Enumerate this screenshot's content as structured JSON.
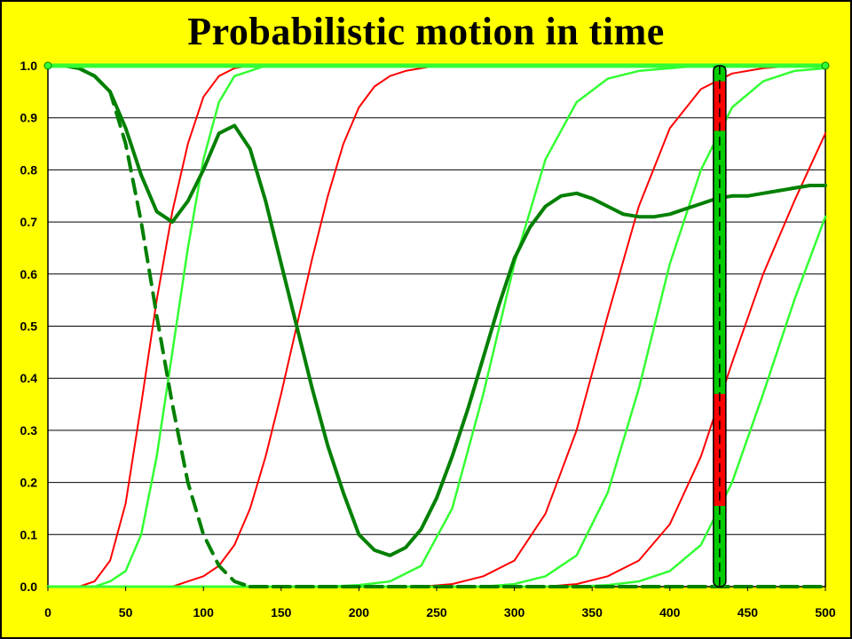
{
  "chart_data": {
    "type": "line",
    "title": "Probabilistic motion in time",
    "xlabel": "",
    "ylabel": "",
    "xlim": [
      0,
      500
    ],
    "ylim": [
      0,
      1
    ],
    "x_ticks": [
      "0",
      "50",
      "100",
      "150",
      "200",
      "250",
      "300",
      "350",
      "400",
      "450",
      "500"
    ],
    "y_ticks": [
      "0.0",
      "0.1",
      "0.2",
      "0.3",
      "0.4",
      "0.5",
      "0.6",
      "0.7",
      "0.8",
      "0.9",
      "1.0"
    ],
    "grid": "horizontal",
    "background_color": "#ffff00",
    "plot_background_color": "#ffffff",
    "series": [
      {
        "style": "red",
        "x": [
          0,
          20,
          30,
          40,
          50,
          60,
          70,
          80,
          90,
          100,
          110,
          120,
          130,
          140,
          500
        ],
        "y": [
          0,
          0,
          0.01,
          0.05,
          0.16,
          0.35,
          0.55,
          0.72,
          0.85,
          0.94,
          0.98,
          0.995,
          1,
          1,
          1
        ]
      },
      {
        "style": "lightgreen",
        "x": [
          0,
          30,
          40,
          50,
          60,
          70,
          80,
          90,
          100,
          110,
          120,
          130,
          140,
          150,
          500
        ],
        "y": [
          0,
          0,
          0.01,
          0.03,
          0.1,
          0.25,
          0.45,
          0.65,
          0.82,
          0.93,
          0.98,
          0.99,
          1,
          1,
          1
        ]
      },
      {
        "style": "red",
        "x": [
          0,
          70,
          80,
          90,
          100,
          110,
          120,
          130,
          140,
          150,
          160,
          170,
          180,
          190,
          200,
          210,
          220,
          230,
          240,
          250,
          260,
          500
        ],
        "y": [
          0,
          0,
          0,
          0.01,
          0.02,
          0.04,
          0.08,
          0.15,
          0.25,
          0.37,
          0.5,
          0.63,
          0.75,
          0.85,
          0.92,
          0.96,
          0.98,
          0.99,
          0.995,
          1,
          1,
          1
        ]
      },
      {
        "style": "lightgreen",
        "x": [
          0,
          180,
          200,
          220,
          240,
          260,
          280,
          300,
          320,
          340,
          360,
          380,
          400,
          420,
          440,
          500
        ],
        "y": [
          0,
          0,
          0.003,
          0.01,
          0.04,
          0.15,
          0.37,
          0.62,
          0.82,
          0.93,
          0.975,
          0.99,
          0.995,
          1,
          1,
          1
        ]
      },
      {
        "style": "red",
        "x": [
          0,
          240,
          260,
          280,
          300,
          320,
          340,
          360,
          380,
          400,
          420,
          440,
          460,
          480,
          500
        ],
        "y": [
          0,
          0,
          0.005,
          0.02,
          0.05,
          0.14,
          0.3,
          0.52,
          0.73,
          0.88,
          0.955,
          0.985,
          0.995,
          1,
          1
        ]
      },
      {
        "style": "lightgreen",
        "x": [
          0,
          280,
          300,
          320,
          340,
          360,
          380,
          400,
          420,
          440,
          460,
          480,
          500
        ],
        "y": [
          0,
          0,
          0.005,
          0.02,
          0.06,
          0.18,
          0.38,
          0.62,
          0.8,
          0.92,
          0.97,
          0.99,
          0.995
        ]
      },
      {
        "style": "red",
        "x": [
          0,
          320,
          340,
          360,
          380,
          400,
          420,
          440,
          460,
          480,
          500
        ],
        "y": [
          0,
          0,
          0.005,
          0.02,
          0.05,
          0.12,
          0.25,
          0.43,
          0.6,
          0.74,
          0.87
        ]
      },
      {
        "style": "lightgreen",
        "x": [
          0,
          340,
          360,
          380,
          400,
          420,
          440,
          460,
          480,
          500
        ],
        "y": [
          0,
          0,
          0.003,
          0.01,
          0.03,
          0.08,
          0.2,
          0.37,
          0.55,
          0.71
        ]
      },
      {
        "style": "darkgreen",
        "x": [
          0,
          10,
          20,
          30,
          40,
          50,
          60,
          70,
          80,
          90,
          100,
          110,
          120,
          130,
          140,
          150,
          160,
          170,
          180,
          190,
          200,
          210,
          220,
          230,
          240,
          250,
          260,
          270,
          280,
          290,
          300,
          310,
          320,
          330,
          340,
          350,
          360,
          370,
          380,
          390,
          400,
          410,
          420,
          430,
          440,
          450,
          460,
          470,
          480,
          490,
          500
        ],
        "y": [
          1,
          1,
          0.995,
          0.98,
          0.95,
          0.88,
          0.79,
          0.72,
          0.7,
          0.74,
          0.8,
          0.87,
          0.885,
          0.84,
          0.74,
          0.62,
          0.5,
          0.38,
          0.27,
          0.18,
          0.1,
          0.07,
          0.06,
          0.075,
          0.11,
          0.17,
          0.25,
          0.34,
          0.44,
          0.54,
          0.63,
          0.69,
          0.73,
          0.75,
          0.755,
          0.745,
          0.73,
          0.715,
          0.71,
          0.71,
          0.715,
          0.725,
          0.735,
          0.745,
          0.75,
          0.75,
          0.755,
          0.76,
          0.765,
          0.77,
          0.77
        ]
      },
      {
        "style": "darkgreen-dashed",
        "x": [
          0,
          10,
          20,
          30,
          40,
          50,
          60,
          70,
          80,
          90,
          100,
          110,
          120,
          130,
          500
        ],
        "y": [
          1,
          1,
          0.995,
          0.98,
          0.95,
          0.85,
          0.7,
          0.52,
          0.35,
          0.2,
          0.1,
          0.04,
          0.01,
          0,
          0
        ]
      },
      {
        "style": "darkgreen-dashed",
        "x": [
          130,
          500
        ],
        "y": [
          0,
          0
        ]
      },
      {
        "style": "green-top",
        "x": [
          0,
          500
        ],
        "y": [
          1,
          1
        ]
      }
    ],
    "marker": {
      "x": 432
    }
  },
  "colors": {
    "red": "#ff0000",
    "lightgreen": "#33ff33",
    "darkgreen": "#008000",
    "green": "#00cc00",
    "yellow": "#ffff00"
  }
}
